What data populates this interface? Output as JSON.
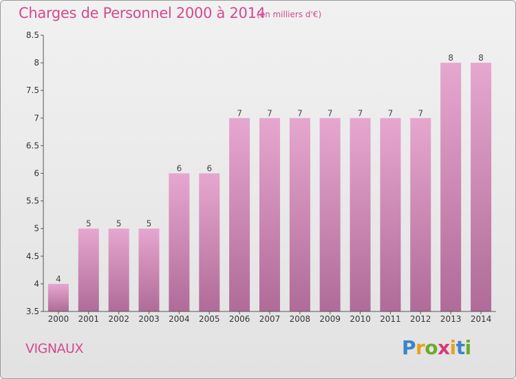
{
  "chart_data": {
    "type": "bar",
    "title": "Charges de Personnel 2000 à 2014",
    "subtitle": "(en milliers d'€)",
    "categories": [
      "2000",
      "2001",
      "2002",
      "2003",
      "2004",
      "2005",
      "2006",
      "2007",
      "2008",
      "2009",
      "2010",
      "2011",
      "2012",
      "2013",
      "2014"
    ],
    "values": [
      4,
      5,
      5,
      5,
      6,
      6,
      7,
      7,
      7,
      7,
      7,
      7,
      7,
      8,
      8
    ],
    "data_labels": [
      "4",
      "5",
      "5",
      "5",
      "6",
      "6",
      "7",
      "7",
      "7",
      "7",
      "7",
      "7",
      "7",
      "8",
      "8"
    ],
    "ylim": [
      3.5,
      8.5
    ],
    "yticks": [
      "3.5",
      "4",
      "4.5",
      "5",
      "5.5",
      "6",
      "6.5",
      "7",
      "7.5",
      "8",
      "8.5"
    ],
    "xlabel": "",
    "ylabel": "",
    "grid": false,
    "legend": "none",
    "bar_color_top": "#e6a7cf",
    "bar_color_bottom": "#b06b98"
  },
  "place_name": "VIGNAUX",
  "logo": {
    "letters": [
      "P",
      "r",
      "o",
      "x",
      "i",
      "t",
      "i"
    ],
    "colors": [
      "#3a86c8",
      "#e9a21d",
      "#6cab2a",
      "#d63a7a",
      "#e9a21d",
      "#3a86c8",
      "#6cab2a"
    ]
  },
  "accent_color": "#d24a90"
}
